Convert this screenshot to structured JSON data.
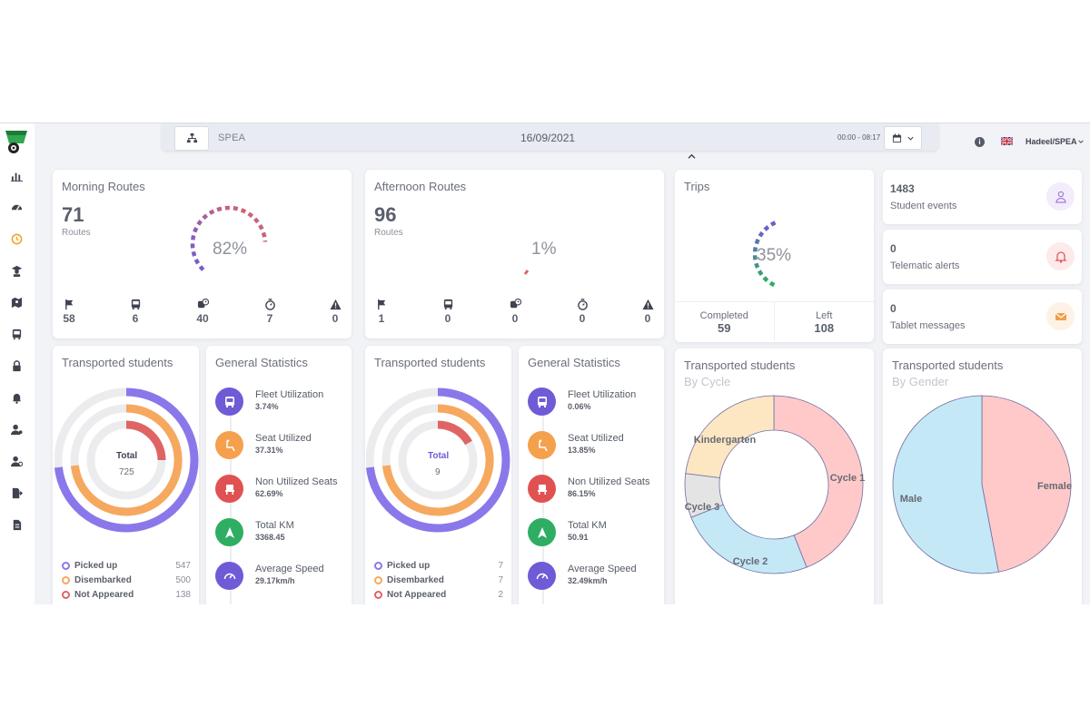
{
  "header": {
    "org": "SPEA",
    "date": "16/09/2021",
    "time_range": "00:00 - 08:17",
    "user": "Hadeel/SPEA",
    "info_glyph": "i"
  },
  "sidebar": {
    "icons": [
      "bar-chart-icon",
      "dashboard-gauge-icon",
      "history-icon",
      "students-icon",
      "map-route-icon",
      "bus-icon",
      "lock-icon",
      "bell-icon",
      "user-settings-icon",
      "user-gear-icon",
      "export-icon",
      "report-icon"
    ]
  },
  "morning": {
    "title": "Morning Routes",
    "routes": "71",
    "routes_label": "Routes",
    "percent": "82%",
    "stats": [
      "58",
      "6",
      "40",
      "7",
      "0"
    ]
  },
  "afternoon": {
    "title": "Afternoon Routes",
    "routes": "96",
    "routes_label": "Routes",
    "percent": "1%",
    "stats": [
      "1",
      "0",
      "0",
      "0",
      "0"
    ]
  },
  "stat_icons": [
    "flag-icon",
    "bus-icon",
    "bus-clock-icon",
    "timer-icon",
    "warning-icon"
  ],
  "trips": {
    "title": "Trips",
    "percent": "35%",
    "completed_label": "Completed",
    "completed": "59",
    "left_label": "Left",
    "left": "108"
  },
  "events": [
    {
      "value": "1483",
      "label": "Student events",
      "icon": "student-icon",
      "color": "#a77fd6",
      "bg": "#f3ecfb"
    },
    {
      "value": "0",
      "label": "Telematic alerts",
      "icon": "bell-icon",
      "color": "#e05b5b",
      "bg": "#fdeaea"
    },
    {
      "value": "0",
      "label": "Tablet messages",
      "icon": "envelope-icon",
      "color": "#f0a04a",
      "bg": "#fdf2e5"
    }
  ],
  "ts_morning": {
    "title": "Transported students",
    "total_label": "Total",
    "total": "725",
    "legend": [
      {
        "label": "Picked up",
        "value": "547",
        "color": "#8a78ea"
      },
      {
        "label": "Disembarked",
        "value": "500",
        "color": "#f6a85f"
      },
      {
        "label": "Not Appeared",
        "value": "138",
        "color": "#e06464"
      }
    ]
  },
  "ts_afternoon": {
    "title": "Transported students",
    "total_label": "Total",
    "total": "9",
    "legend": [
      {
        "label": "Picked up",
        "value": "7",
        "color": "#8a78ea"
      },
      {
        "label": "Disembarked",
        "value": "7",
        "color": "#f6a85f"
      },
      {
        "label": "Not Appeared",
        "value": "2",
        "color": "#e06464"
      }
    ]
  },
  "gs_morning": {
    "title": "General Statistics",
    "items": [
      {
        "label": "Fleet Utilization",
        "value": "3.74%",
        "color": "#6f5bd6",
        "icon": "bus-icon"
      },
      {
        "label": "Seat Utilized",
        "value": "37.31%",
        "color": "#f5a04c",
        "icon": "seat-icon"
      },
      {
        "label": "Non Utilized Seats",
        "value": "62.69%",
        "color": "#e05252",
        "icon": "empty-seat-icon"
      },
      {
        "label": "Total KM",
        "value": "3368.45",
        "color": "#2fae63",
        "icon": "navigation-icon"
      },
      {
        "label": "Average Speed",
        "value": "29.17km/h",
        "color": "#6f5bd6",
        "icon": "speedometer-icon"
      }
    ]
  },
  "gs_afternoon": {
    "title": "General Statistics",
    "items": [
      {
        "label": "Fleet Utilization",
        "value": "0.06%",
        "color": "#6f5bd6",
        "icon": "bus-icon"
      },
      {
        "label": "Seat Utilized",
        "value": "13.85%",
        "color": "#f5a04c",
        "icon": "seat-icon"
      },
      {
        "label": "Non Utilized Seats",
        "value": "86.15%",
        "color": "#e05252",
        "icon": "empty-seat-icon"
      },
      {
        "label": "Total KM",
        "value": "50.91",
        "color": "#2fae63",
        "icon": "navigation-icon"
      },
      {
        "label": "Average Speed",
        "value": "32.49km/h",
        "color": "#6f5bd6",
        "icon": "speedometer-icon"
      }
    ]
  },
  "by_cycle": {
    "title": "Transported students",
    "subtitle": "By Cycle"
  },
  "by_gender": {
    "title": "Transported students",
    "subtitle": "By Gender"
  },
  "chart_data": [
    {
      "type": "pie",
      "title": "Transported students – By Cycle",
      "donut": true,
      "categories": [
        "Cycle 1",
        "Cycle 2",
        "Cycle 3",
        "Kindergarten"
      ],
      "values": [
        44,
        25,
        8,
        23
      ],
      "colors": [
        "#ffc9c9",
        "#c5e8f7",
        "#e4e4e4",
        "#fde7c3"
      ]
    },
    {
      "type": "pie",
      "title": "Transported students – By Gender",
      "donut": false,
      "categories": [
        "Female",
        "Male"
      ],
      "values": [
        47,
        53
      ],
      "colors": [
        "#ffc9c9",
        "#c5e8f7"
      ]
    }
  ]
}
